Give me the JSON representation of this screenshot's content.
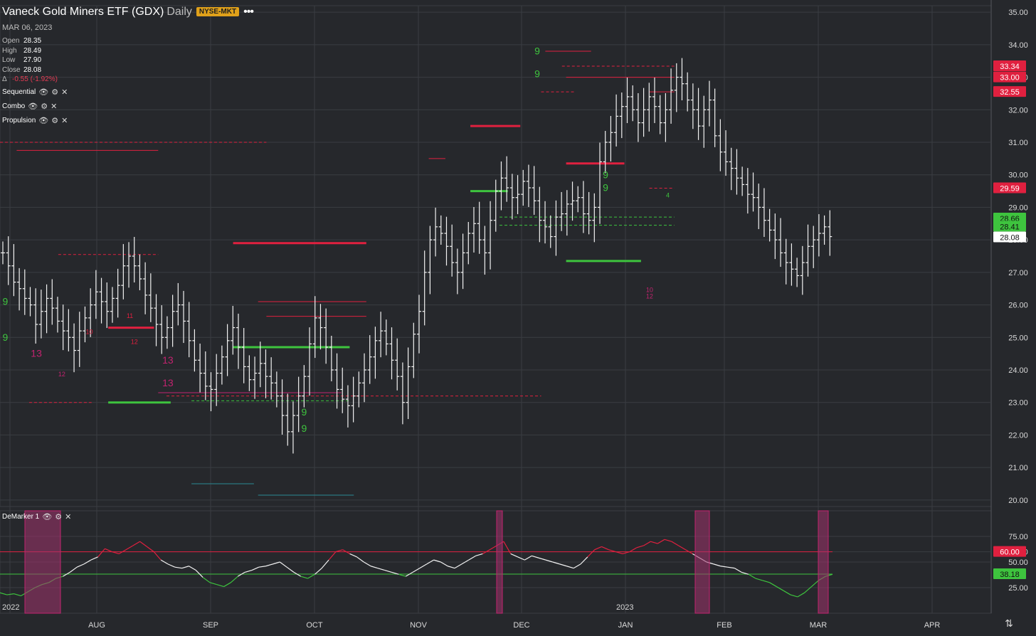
{
  "header": {
    "title": "Vaneck Gold Miners ETF (GDX)",
    "interval": "Daily",
    "exchange": "NYSE-MKT",
    "date": "MAR 06, 2023",
    "ohlc": [
      {
        "label": "Open",
        "value": "28.35"
      },
      {
        "label": "High",
        "value": "28.49"
      },
      {
        "label": "Low",
        "value": "27.90"
      },
      {
        "label": "Close",
        "value": "28.08"
      }
    ],
    "change_label": "Δ",
    "change": "-0.55 (-1.92%)"
  },
  "indicators": [
    "Sequential",
    "Combo",
    "Propulsion"
  ],
  "lower_panel_title": "DeMarker 1",
  "colors": {
    "background": "#26282c",
    "grid": "#3a3d42",
    "red": "#e0203f",
    "green": "#3ec43e",
    "magenta": "#c2236f",
    "teal": "#2b8a93"
  },
  "chart_data": [
    {
      "type": "ohlc",
      "yticks": [
        "35.00",
        "34.00",
        "33.00",
        "32.00",
        "31.00",
        "30.00",
        "29.00",
        "28.00",
        "27.00",
        "26.00",
        "25.00",
        "24.00",
        "23.00",
        "22.00",
        "21.00",
        "20.00"
      ],
      "ylim": [
        19.8,
        35.2
      ],
      "xticks": [
        "2022",
        "AUG",
        "SEP",
        "OCT",
        "NOV",
        "DEC",
        "JAN",
        "2023",
        "FEB",
        "MAR",
        "APR"
      ],
      "price_labels": [
        {
          "value": 33.34,
          "text": "33.34",
          "color": "red"
        },
        {
          "value": 33.0,
          "text": "33.00",
          "color": "red"
        },
        {
          "value": 32.55,
          "text": "32.55",
          "color": "red"
        },
        {
          "value": 29.59,
          "text": "29.59",
          "color": "red"
        },
        {
          "value": 28.66,
          "text": "28.66",
          "color": "green"
        },
        {
          "value": 28.41,
          "text": "28.41",
          "color": "green"
        },
        {
          "value": 28.08,
          "text": "28.08",
          "color": "white"
        }
      ],
      "close_path": [
        27.6,
        27.2,
        26.7,
        26.5,
        26.2,
        26.0,
        25.4,
        25.8,
        26.2,
        25.9,
        25.5,
        25.2,
        25.0,
        24.6,
        25.2,
        25.6,
        26.0,
        26.4,
        26.1,
        25.8,
        26.2,
        26.6,
        27.2,
        27.5,
        27.2,
        26.8,
        26.3,
        25.9,
        25.4,
        25.0,
        25.3,
        25.8,
        26.0,
        25.5,
        24.9,
        24.3,
        23.9,
        23.5,
        23.4,
        23.9,
        24.4,
        24.9,
        25.3,
        24.7,
        24.1,
        23.7,
        23.9,
        24.2,
        23.8,
        23.6,
        23.2,
        22.6,
        22.1,
        22.6,
        23.2,
        23.8,
        24.8,
        25.6,
        25.3,
        24.7,
        24.0,
        23.4,
        23.1,
        22.9,
        23.2,
        23.6,
        24.0,
        24.4,
        24.9,
        25.2,
        24.8,
        24.3,
        23.8,
        23.0,
        24.1,
        25.1,
        25.8,
        27.0,
        28.0,
        28.4,
        28.2,
        27.8,
        27.3,
        27.0,
        27.6,
        28.2,
        28.5,
        28.0,
        27.6,
        28.6,
        29.5,
        29.9,
        29.6,
        29.3,
        29.4,
        29.8,
        29.6,
        29.2,
        28.6,
        28.4,
        28.1,
        28.7,
        28.8,
        29.1,
        29.2,
        29.3,
        28.8,
        28.6,
        29.0,
        30.4,
        31.0,
        31.3,
        31.8,
        32.1,
        32.4,
        32.0,
        31.6,
        32.0,
        32.4,
        32.1,
        31.6,
        32.0,
        32.6,
        33.0,
        32.8,
        32.3,
        32.0,
        31.5,
        32.0,
        32.3,
        31.2,
        30.7,
        30.4,
        30.2,
        29.9,
        29.7,
        29.4,
        29.3,
        29.0,
        28.6,
        28.3,
        28.0,
        27.6,
        27.3,
        27.1,
        26.9,
        27.3,
        27.8,
        28.0,
        28.2,
        28.4,
        28.1
      ],
      "levels": [
        {
          "from": 0.0,
          "to": 0.32,
          "value": 31.0,
          "color": "red",
          "style": "dashed"
        },
        {
          "from": 0.02,
          "to": 0.19,
          "value": 30.75,
          "color": "red",
          "style": "solid"
        },
        {
          "from": 0.07,
          "to": 0.19,
          "value": 27.55,
          "color": "red",
          "style": "dashed"
        },
        {
          "from": 0.13,
          "to": 0.185,
          "value": 25.3,
          "color": "red",
          "style": "solid",
          "weight": 3
        },
        {
          "from": 0.13,
          "to": 0.205,
          "value": 23.0,
          "color": "green",
          "style": "solid",
          "weight": 3
        },
        {
          "from": 0.035,
          "to": 0.11,
          "value": 23.0,
          "color": "red",
          "style": "dashed"
        },
        {
          "from": 0.28,
          "to": 0.44,
          "value": 27.9,
          "color": "red",
          "style": "solid",
          "weight": 3
        },
        {
          "from": 0.31,
          "to": 0.44,
          "value": 26.1,
          "color": "red",
          "style": "solid"
        },
        {
          "from": 0.32,
          "to": 0.44,
          "value": 25.65,
          "color": "red",
          "style": "solid"
        },
        {
          "from": 0.28,
          "to": 0.42,
          "value": 24.7,
          "color": "green",
          "style": "solid",
          "weight": 3
        },
        {
          "from": 0.19,
          "to": 0.41,
          "value": 23.3,
          "color": "magenta",
          "style": "solid"
        },
        {
          "from": 0.2,
          "to": 0.65,
          "value": 23.2,
          "color": "red",
          "style": "dashed"
        },
        {
          "from": 0.23,
          "to": 0.42,
          "value": 23.05,
          "color": "green",
          "style": "dashed"
        },
        {
          "from": 0.23,
          "to": 0.305,
          "value": 20.5,
          "color": "teal",
          "style": "solid"
        },
        {
          "from": 0.31,
          "to": 0.425,
          "value": 20.15,
          "color": "teal",
          "style": "solid"
        },
        {
          "from": 0.515,
          "to": 0.535,
          "value": 30.5,
          "color": "red",
          "style": "solid"
        },
        {
          "from": 0.565,
          "to": 0.625,
          "value": 31.5,
          "color": "red",
          "style": "solid",
          "weight": 3
        },
        {
          "from": 0.565,
          "to": 0.61,
          "value": 29.5,
          "color": "green",
          "style": "solid",
          "weight": 3
        },
        {
          "from": 0.6,
          "to": 0.81,
          "value": 28.7,
          "color": "green",
          "style": "dashed"
        },
        {
          "from": 0.6,
          "to": 0.81,
          "value": 28.45,
          "color": "green",
          "style": "dashed"
        },
        {
          "from": 0.655,
          "to": 0.71,
          "value": 33.8,
          "color": "red",
          "style": "solid"
        },
        {
          "from": 0.675,
          "to": 0.81,
          "value": 33.34,
          "color": "red",
          "style": "dashed"
        },
        {
          "from": 0.68,
          "to": 0.81,
          "value": 33.0,
          "color": "red",
          "style": "solid"
        },
        {
          "from": 0.65,
          "to": 0.69,
          "value": 32.55,
          "color": "red",
          "style": "dashed"
        },
        {
          "from": 0.78,
          "to": 0.81,
          "value": 32.55,
          "color": "red",
          "style": "solid"
        },
        {
          "from": 0.68,
          "to": 0.75,
          "value": 30.35,
          "color": "red",
          "style": "solid",
          "weight": 3
        },
        {
          "from": 0.68,
          "to": 0.77,
          "value": 27.35,
          "color": "green",
          "style": "solid",
          "weight": 3
        },
        {
          "from": 0.78,
          "to": 0.81,
          "value": 29.59,
          "color": "red",
          "style": "dashed"
        }
      ],
      "annotations": [
        {
          "text": "9",
          "x": 0.003,
          "y": 26.0,
          "color": "green",
          "size": 14
        },
        {
          "text": "9",
          "x": 0.003,
          "y": 24.9,
          "color": "green",
          "size": 14
        },
        {
          "text": "13",
          "x": 0.037,
          "y": 24.4,
          "color": "magenta",
          "size": 14
        },
        {
          "text": "13",
          "x": 0.195,
          "y": 24.2,
          "color": "magenta",
          "size": 14
        },
        {
          "text": "13",
          "x": 0.195,
          "y": 23.5,
          "color": "magenta",
          "size": 14
        },
        {
          "text": "12",
          "x": 0.07,
          "y": 23.8,
          "color": "magenta",
          "size": 9
        },
        {
          "text": "10",
          "x": 0.103,
          "y": 25.1,
          "color": "red",
          "size": 9
        },
        {
          "text": "11",
          "x": 0.152,
          "y": 25.6,
          "color": "red",
          "size": 9
        },
        {
          "text": "12",
          "x": 0.157,
          "y": 24.8,
          "color": "red",
          "size": 9
        },
        {
          "text": "9",
          "x": 0.362,
          "y": 22.6,
          "color": "green",
          "size": 14
        },
        {
          "text": "9",
          "x": 0.362,
          "y": 22.1,
          "color": "green",
          "size": 14
        },
        {
          "text": "9",
          "x": 0.642,
          "y": 33.7,
          "color": "green",
          "size": 14
        },
        {
          "text": "9",
          "x": 0.642,
          "y": 33.0,
          "color": "green",
          "size": 14
        },
        {
          "text": "9",
          "x": 0.724,
          "y": 29.9,
          "color": "green",
          "size": 14
        },
        {
          "text": "9",
          "x": 0.724,
          "y": 29.5,
          "color": "green",
          "size": 14
        },
        {
          "text": "12",
          "x": 0.776,
          "y": 26.2,
          "color": "magenta",
          "size": 9
        },
        {
          "text": "10",
          "x": 0.776,
          "y": 26.4,
          "color": "magenta",
          "size": 9
        },
        {
          "text": "4",
          "x": 0.8,
          "y": 29.3,
          "color": "green",
          "size": 9
        }
      ]
    },
    {
      "type": "line",
      "title": "DeMarker 1",
      "yticks": [
        "75.00",
        "60.00",
        "50.00",
        "25.00"
      ],
      "ylim": [
        0,
        100
      ],
      "thresholds": [
        {
          "value": 60,
          "color": "red"
        },
        {
          "value": 38.18,
          "color": "green"
        }
      ],
      "value_labels": [
        {
          "value": 60.0,
          "text": "60.00",
          "color": "red"
        },
        {
          "value": 38.18,
          "text": "38.18",
          "color": "green"
        }
      ],
      "values": [
        20,
        18,
        19,
        17,
        21,
        25,
        28,
        30,
        34,
        36,
        40,
        45,
        48,
        52,
        55,
        63,
        60,
        58,
        62,
        66,
        70,
        65,
        60,
        52,
        48,
        45,
        44,
        46,
        42,
        35,
        30,
        28,
        26,
        30,
        36,
        40,
        42,
        45,
        46,
        48,
        50,
        45,
        40,
        36,
        34,
        38,
        44,
        52,
        60,
        62,
        58,
        55,
        50,
        46,
        44,
        42,
        40,
        38,
        36,
        40,
        44,
        48,
        52,
        50,
        46,
        44,
        48,
        52,
        56,
        58,
        62,
        66,
        70,
        58,
        55,
        52,
        56,
        54,
        52,
        50,
        48,
        46,
        44,
        48,
        55,
        62,
        65,
        62,
        60,
        58,
        60,
        64,
        66,
        70,
        68,
        72,
        70,
        66,
        62,
        58,
        54,
        50,
        48,
        46,
        45,
        44,
        40,
        38,
        34,
        32,
        30,
        26,
        22,
        18,
        16,
        20,
        26,
        32,
        36,
        38
      ]
    }
  ]
}
